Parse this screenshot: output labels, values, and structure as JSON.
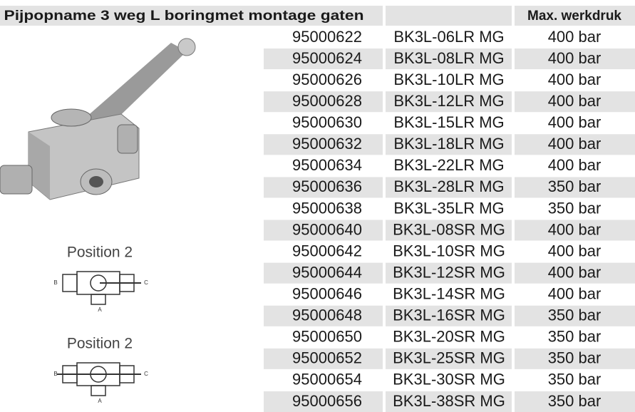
{
  "header": {
    "title": "Pijpopname 3 weg L boringmet montage gaten",
    "pressure_heading": "Max. werkdruk"
  },
  "table": {
    "rows": [
      [
        "95000622",
        "BK3L-06LR MG",
        "400 bar"
      ],
      [
        "95000624",
        "BK3L-08LR MG",
        "400 bar"
      ],
      [
        "95000626",
        "BK3L-10LR MG",
        "400 bar"
      ],
      [
        "95000628",
        "BK3L-12LR MG",
        "400 bar"
      ],
      [
        "95000630",
        "BK3L-15LR MG",
        "400 bar"
      ],
      [
        "95000632",
        "BK3L-18LR MG",
        "400 bar"
      ],
      [
        "95000634",
        "BK3L-22LR MG",
        "400 bar"
      ],
      [
        "95000636",
        "BK3L-28LR MG",
        "350 bar"
      ],
      [
        "95000638",
        "BK3L-35LR MG",
        "350 bar"
      ],
      [
        "95000640",
        "BK3L-08SR MG",
        "400 bar"
      ],
      [
        "95000642",
        "BK3L-10SR MG",
        "400 bar"
      ],
      [
        "95000644",
        "BK3L-12SR MG",
        "400 bar"
      ],
      [
        "95000646",
        "BK3L-14SR MG",
        "400 bar"
      ],
      [
        "95000648",
        "BK3L-16SR MG",
        "350 bar"
      ],
      [
        "95000650",
        "BK3L-20SR MG",
        "350 bar"
      ],
      [
        "95000652",
        "BK3L-25SR MG",
        "350 bar"
      ],
      [
        "95000654",
        "BK3L-30SR MG",
        "350 bar"
      ],
      [
        "95000656",
        "BK3L-38SR MG",
        "350 bar"
      ]
    ]
  },
  "diagrams": [
    {
      "title": "Position 2",
      "ports": [
        "B",
        "C",
        "A"
      ]
    },
    {
      "title": "Position 2",
      "ports": [
        "B",
        "C",
        "A"
      ]
    }
  ]
}
